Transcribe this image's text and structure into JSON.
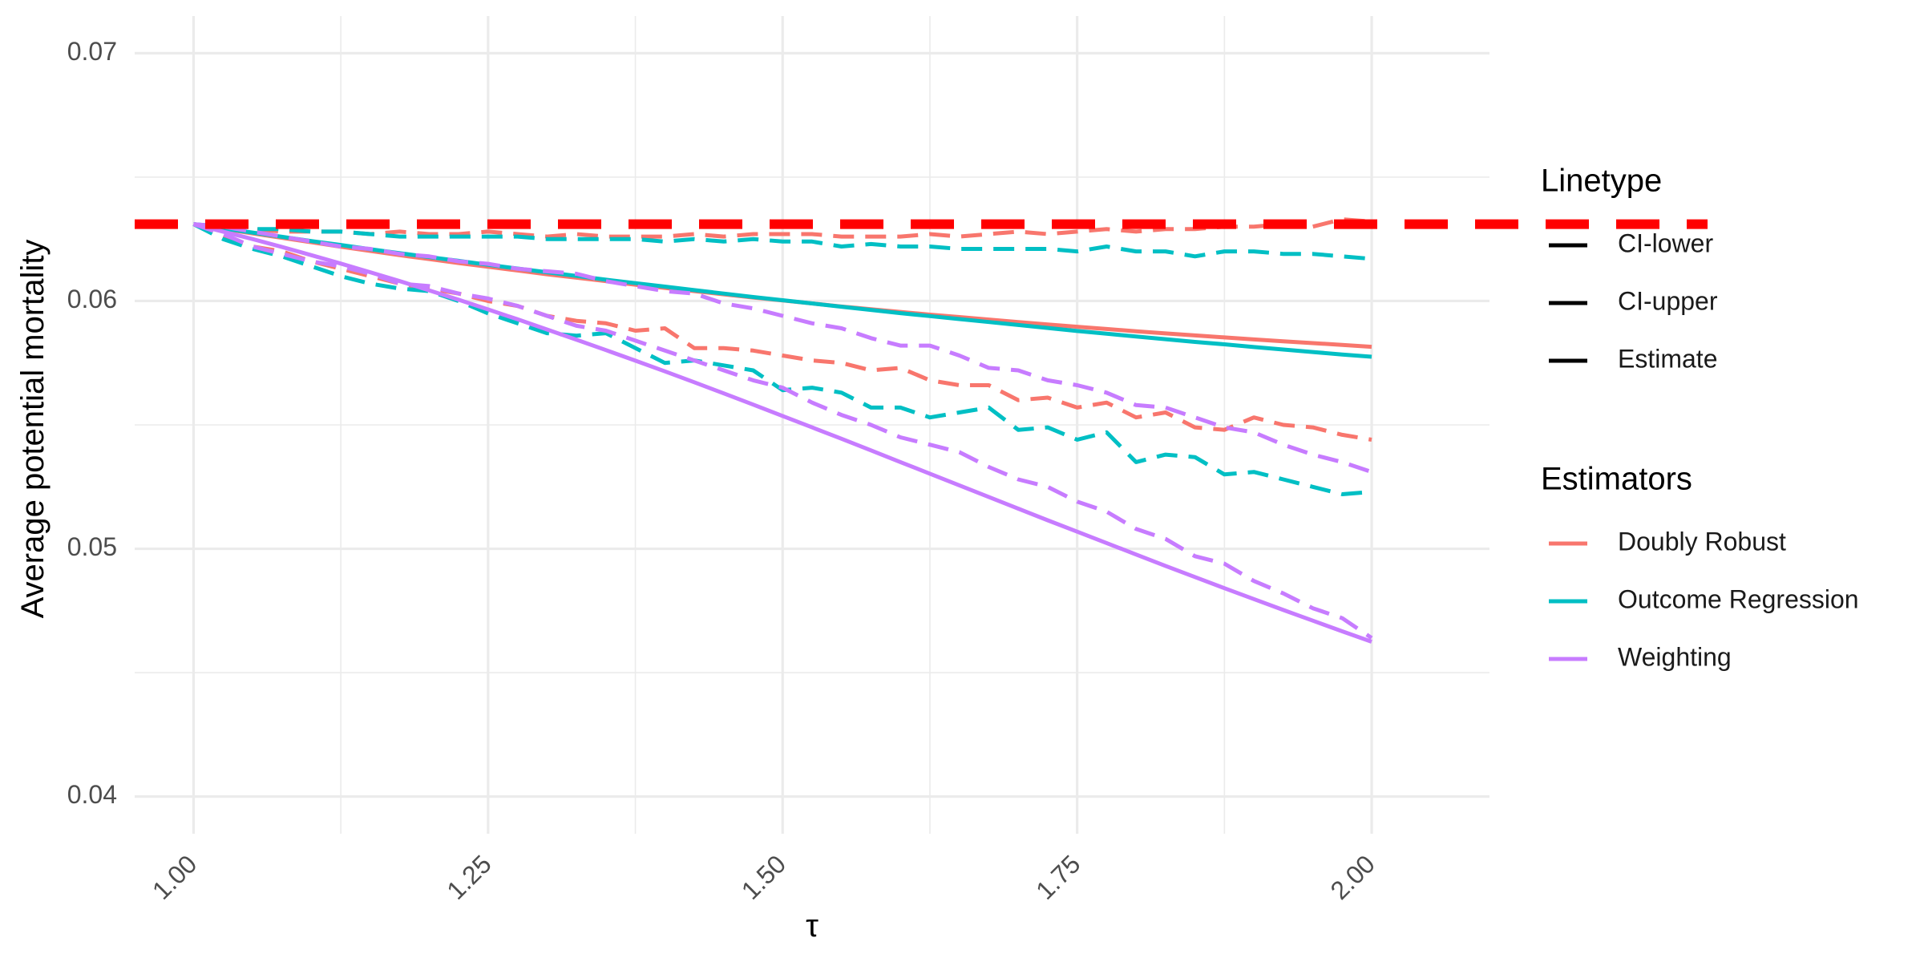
{
  "chart_data": {
    "type": "line",
    "title": "",
    "xlabel": "τ",
    "ylabel": "Average potential mortality",
    "xlim": [
      0.95,
      2.1
    ],
    "ylim": [
      0.0385,
      0.0715
    ],
    "x_ticks": [
      1.0,
      1.25,
      1.5,
      1.75,
      2.0
    ],
    "x_tick_labels": [
      "1.00",
      "1.25",
      "1.50",
      "1.75",
      "2.00"
    ],
    "x_minor_ticks": [
      1.125,
      1.375,
      1.625,
      1.875
    ],
    "y_ticks": [
      0.04,
      0.05,
      0.06,
      0.07
    ],
    "y_tick_labels": [
      "0.04",
      "0.05",
      "0.06",
      "0.07"
    ],
    "y_minor_ticks": [
      0.045,
      0.055,
      0.065
    ],
    "grid": true,
    "x_tick_label_rotation": -45,
    "reference_line": {
      "y": 0.0631,
      "color": "#ff0000",
      "style": "dashed"
    },
    "legend_placement": "right",
    "legends": [
      {
        "title": "Linetype",
        "entries": [
          {
            "label": "CI-lower",
            "dash": "dashed"
          },
          {
            "label": "CI-upper",
            "dash": "dashed"
          },
          {
            "label": "Estimate",
            "dash": "solid"
          }
        ]
      },
      {
        "title": "Estimators",
        "entries": [
          {
            "label": "Doubly Robust",
            "color": "#f8766d"
          },
          {
            "label": "Outcome Regression",
            "color": "#00bfc4"
          },
          {
            "label": "Weighting",
            "color": "#c77cff"
          }
        ]
      }
    ],
    "x": [
      1.0,
      1.025,
      1.05,
      1.075,
      1.1,
      1.125,
      1.15,
      1.175,
      1.2,
      1.225,
      1.25,
      1.275,
      1.3,
      1.325,
      1.35,
      1.375,
      1.4,
      1.425,
      1.45,
      1.475,
      1.5,
      1.525,
      1.55,
      1.575,
      1.6,
      1.625,
      1.65,
      1.675,
      1.7,
      1.725,
      1.75,
      1.775,
      1.8,
      1.825,
      1.85,
      1.875,
      1.9,
      1.925,
      1.95,
      1.975,
      2.0
    ],
    "series": [
      {
        "estimator": "Doubly Robust",
        "linetype": "Estimate",
        "color": "#f8766d",
        "values": [
          0.0631,
          0.06291,
          0.06273,
          0.06255,
          0.06237,
          0.06219,
          0.06202,
          0.06185,
          0.06169,
          0.06153,
          0.06138,
          0.06123,
          0.06108,
          0.06094,
          0.0608,
          0.06066,
          0.06053,
          0.0604,
          0.06027,
          0.06014,
          0.06002,
          0.0599,
          0.05978,
          0.05967,
          0.05956,
          0.05945,
          0.05935,
          0.05925,
          0.05915,
          0.05905,
          0.05896,
          0.05887,
          0.05878,
          0.05869,
          0.05861,
          0.05853,
          0.05845,
          0.05837,
          0.0583,
          0.05823,
          0.05815
        ]
      },
      {
        "estimator": "Doubly Robust",
        "linetype": "CI-upper",
        "color": "#f8766d",
        "values": [
          0.0631,
          0.0629,
          0.0629,
          0.0628,
          0.0628,
          0.0628,
          0.0627,
          0.0628,
          0.0627,
          0.0627,
          0.0628,
          0.0627,
          0.0626,
          0.0627,
          0.0626,
          0.0626,
          0.0626,
          0.0627,
          0.0626,
          0.0627,
          0.0627,
          0.0627,
          0.0626,
          0.0626,
          0.0626,
          0.0627,
          0.0626,
          0.0627,
          0.0628,
          0.0627,
          0.0628,
          0.0629,
          0.0628,
          0.0629,
          0.0629,
          0.063,
          0.063,
          0.0631,
          0.063,
          0.0633,
          0.0632
        ]
      },
      {
        "estimator": "Doubly Robust",
        "linetype": "CI-lower",
        "color": "#f8766d",
        "values": [
          0.0631,
          0.0626,
          0.0622,
          0.062,
          0.0616,
          0.0613,
          0.061,
          0.0607,
          0.0605,
          0.0603,
          0.06,
          0.0598,
          0.0594,
          0.0592,
          0.0591,
          0.0588,
          0.0589,
          0.0581,
          0.0581,
          0.058,
          0.0578,
          0.0576,
          0.0575,
          0.0572,
          0.0573,
          0.0568,
          0.0566,
          0.0566,
          0.056,
          0.0561,
          0.0557,
          0.0559,
          0.0553,
          0.0555,
          0.0549,
          0.0548,
          0.0553,
          0.055,
          0.0549,
          0.0546,
          0.0544
        ]
      },
      {
        "estimator": "Outcome Regression",
        "linetype": "Estimate",
        "color": "#00bfc4",
        "values": [
          0.0631,
          0.06293,
          0.06276,
          0.06259,
          0.06242,
          0.06226,
          0.06209,
          0.06193,
          0.06177,
          0.06162,
          0.06146,
          0.06131,
          0.06116,
          0.06101,
          0.06086,
          0.06072,
          0.06058,
          0.06044,
          0.0603,
          0.06016,
          0.06003,
          0.0599,
          0.05977,
          0.05964,
          0.05951,
          0.05939,
          0.05927,
          0.05915,
          0.05903,
          0.05891,
          0.05879,
          0.05868,
          0.05857,
          0.05846,
          0.05835,
          0.05825,
          0.05814,
          0.05804,
          0.05794,
          0.05784,
          0.05775
        ]
      },
      {
        "estimator": "Outcome Regression",
        "linetype": "CI-upper",
        "color": "#00bfc4",
        "values": [
          0.0631,
          0.063,
          0.0629,
          0.0629,
          0.0628,
          0.0628,
          0.0627,
          0.0626,
          0.0626,
          0.0626,
          0.0626,
          0.0626,
          0.0625,
          0.0625,
          0.0625,
          0.0625,
          0.0624,
          0.0625,
          0.0624,
          0.0625,
          0.0624,
          0.0624,
          0.0622,
          0.0623,
          0.0622,
          0.0622,
          0.0621,
          0.0621,
          0.0621,
          0.0621,
          0.062,
          0.0622,
          0.062,
          0.062,
          0.0618,
          0.062,
          0.062,
          0.0619,
          0.0619,
          0.0618,
          0.0617
        ]
      },
      {
        "estimator": "Outcome Regression",
        "linetype": "CI-lower",
        "color": "#00bfc4",
        "values": [
          0.0631,
          0.0625,
          0.0621,
          0.0618,
          0.0614,
          0.061,
          0.0607,
          0.0605,
          0.0604,
          0.06,
          0.0595,
          0.0591,
          0.0587,
          0.0586,
          0.0587,
          0.0581,
          0.0575,
          0.0576,
          0.0574,
          0.0572,
          0.0564,
          0.0565,
          0.0563,
          0.0557,
          0.0557,
          0.0553,
          0.0555,
          0.0557,
          0.0548,
          0.0549,
          0.0544,
          0.0547,
          0.0535,
          0.0538,
          0.0537,
          0.053,
          0.0531,
          0.0528,
          0.0525,
          0.0522,
          0.0523
        ]
      },
      {
        "estimator": "Weighting",
        "linetype": "Estimate",
        "color": "#c77cff",
        "values": [
          0.0631,
          0.0628,
          0.0625,
          0.06218,
          0.06185,
          0.06151,
          0.06116,
          0.0608,
          0.06043,
          0.06005,
          0.05966,
          0.05926,
          0.05885,
          0.05844,
          0.05802,
          0.05759,
          0.05716,
          0.05672,
          0.05627,
          0.05582,
          0.05536,
          0.0549,
          0.05444,
          0.05397,
          0.0535,
          0.05303,
          0.05256,
          0.05209,
          0.05162,
          0.05115,
          0.05069,
          0.05023,
          0.04977,
          0.04931,
          0.04886,
          0.04841,
          0.04797,
          0.04753,
          0.0471,
          0.04667,
          0.04625
        ]
      },
      {
        "estimator": "Weighting",
        "linetype": "CI-upper",
        "color": "#c77cff",
        "values": [
          0.0631,
          0.063,
          0.0628,
          0.0626,
          0.0624,
          0.0622,
          0.0621,
          0.0619,
          0.0618,
          0.0616,
          0.0615,
          0.0613,
          0.0612,
          0.0611,
          0.0608,
          0.0606,
          0.0604,
          0.0603,
          0.0599,
          0.0597,
          0.0594,
          0.0591,
          0.0589,
          0.0585,
          0.0582,
          0.0582,
          0.0578,
          0.0573,
          0.0572,
          0.0568,
          0.0566,
          0.0563,
          0.0558,
          0.0557,
          0.0553,
          0.0549,
          0.0547,
          0.0542,
          0.0538,
          0.0535,
          0.0531
        ]
      },
      {
        "estimator": "Weighting",
        "linetype": "CI-lower",
        "color": "#c77cff",
        "values": [
          0.0631,
          0.0627,
          0.0622,
          0.0619,
          0.0616,
          0.0614,
          0.0611,
          0.0607,
          0.0606,
          0.0603,
          0.0601,
          0.0598,
          0.0594,
          0.059,
          0.0588,
          0.0584,
          0.058,
          0.0576,
          0.0572,
          0.0568,
          0.0565,
          0.0559,
          0.0554,
          0.055,
          0.0545,
          0.0542,
          0.0539,
          0.0533,
          0.0528,
          0.0525,
          0.0519,
          0.0515,
          0.0508,
          0.0504,
          0.0497,
          0.0494,
          0.0487,
          0.0482,
          0.0476,
          0.0472,
          0.0464
        ]
      }
    ]
  }
}
